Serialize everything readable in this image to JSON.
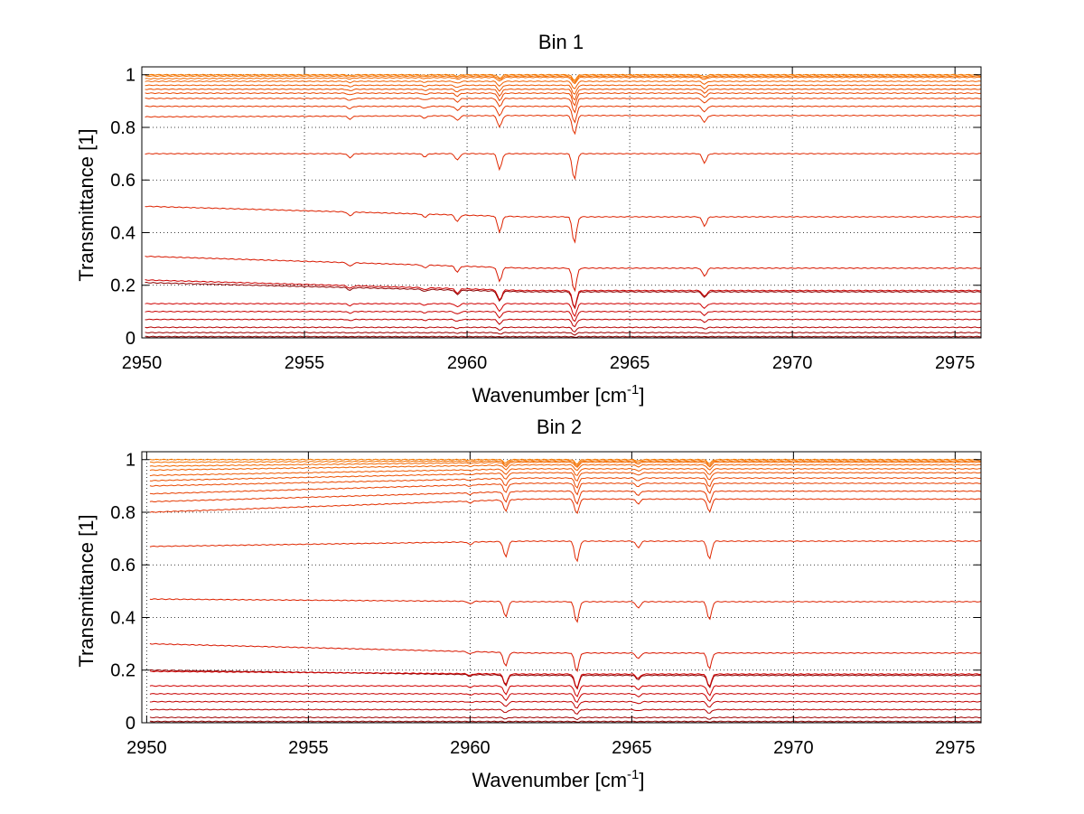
{
  "chart_data": [
    {
      "type": "line",
      "title": "Bin 1",
      "xlabel": "Wavenumber [cm",
      "xlabel_sup": "-1",
      "xlabel_end": "]",
      "ylabel": "Transmittance [1]",
      "xlim": [
        2950,
        2975.8
      ],
      "ylim": [
        0,
        1.03
      ],
      "xticks": [
        2950,
        2955,
        2960,
        2965,
        2970,
        2975
      ],
      "yticks": [
        0,
        0.2,
        0.4,
        0.6,
        0.8,
        1
      ],
      "ytick_labels": [
        "0",
        "0.2",
        "0.4",
        "0.6",
        "0.8",
        "1"
      ],
      "grid": true,
      "x_start": 2950.1,
      "dips": [
        {
          "x": 2961.0,
          "strength": 0.06
        },
        {
          "x": 2963.3,
          "strength": 0.1
        },
        {
          "x": 2967.3,
          "strength": 0.035
        },
        {
          "x": 2959.7,
          "strength": 0.025
        },
        {
          "x": 2956.4,
          "strength": 0.015
        },
        {
          "x": 2958.7,
          "strength": 0.012
        }
      ],
      "series_baselines": [
        {
          "start": 0.0,
          "end": 0.0,
          "color": "#7a0000"
        },
        {
          "start": 0.005,
          "end": 0.005,
          "color": "#8b0000"
        },
        {
          "start": 0.02,
          "end": 0.02,
          "color": "#a00000"
        },
        {
          "start": 0.04,
          "end": 0.04,
          "color": "#b50000"
        },
        {
          "start": 0.07,
          "end": 0.07,
          "color": "#c00000"
        },
        {
          "start": 0.1,
          "end": 0.1,
          "color": "#c80000"
        },
        {
          "start": 0.13,
          "end": 0.13,
          "color": "#d00000"
        },
        {
          "start": 0.21,
          "end": 0.175,
          "color": "#8b0000"
        },
        {
          "start": 0.22,
          "end": 0.18,
          "color": "#cc0000"
        },
        {
          "start": 0.31,
          "end": 0.265,
          "color": "#d81800"
        },
        {
          "start": 0.5,
          "end": 0.46,
          "color": "#dd2200"
        },
        {
          "start": 0.7,
          "end": 0.7,
          "color": "#e02800"
        },
        {
          "start": 0.84,
          "end": 0.845,
          "color": "#e33000"
        },
        {
          "start": 0.88,
          "end": 0.88,
          "color": "#e53800"
        },
        {
          "start": 0.91,
          "end": 0.91,
          "color": "#e84000"
        },
        {
          "start": 0.93,
          "end": 0.93,
          "color": "#ea4800"
        },
        {
          "start": 0.945,
          "end": 0.945,
          "color": "#ec5000"
        },
        {
          "start": 0.96,
          "end": 0.96,
          "color": "#ee5800"
        },
        {
          "start": 0.975,
          "end": 0.975,
          "color": "#f06000"
        },
        {
          "start": 0.985,
          "end": 0.99,
          "color": "#f26800"
        },
        {
          "start": 0.995,
          "end": 0.995,
          "color": "#f47000"
        },
        {
          "start": 1.0,
          "end": 1.0,
          "color": "#f67a00"
        }
      ]
    },
    {
      "type": "line",
      "title": "Bin 2",
      "xlabel": "Wavenumber [cm",
      "xlabel_sup": "-1",
      "xlabel_end": "]",
      "ylabel": "Transmittance [1]",
      "xlim": [
        2949.85,
        2975.8
      ],
      "ylim": [
        0,
        1.03
      ],
      "xticks": [
        2950,
        2955,
        2960,
        2965,
        2970,
        2975
      ],
      "yticks": [
        0,
        0.2,
        0.4,
        0.6,
        0.8,
        1
      ],
      "ytick_labels": [
        "0",
        "0.2",
        "0.4",
        "0.6",
        "0.8",
        "1"
      ],
      "grid": true,
      "x_start": 2950.1,
      "dips": [
        {
          "x": 2961.1,
          "strength": 0.06
        },
        {
          "x": 2963.3,
          "strength": 0.08
        },
        {
          "x": 2967.4,
          "strength": 0.07
        },
        {
          "x": 2965.2,
          "strength": 0.025
        },
        {
          "x": 2960.0,
          "strength": 0.01
        }
      ],
      "series_baselines": [
        {
          "start": 0.0,
          "end": 0.0,
          "color": "#7a0000"
        },
        {
          "start": 0.005,
          "end": 0.005,
          "color": "#8b0000"
        },
        {
          "start": 0.02,
          "end": 0.02,
          "color": "#a00000"
        },
        {
          "start": 0.05,
          "end": 0.05,
          "color": "#b50000"
        },
        {
          "start": 0.08,
          "end": 0.08,
          "color": "#c00000"
        },
        {
          "start": 0.11,
          "end": 0.11,
          "color": "#c80000"
        },
        {
          "start": 0.14,
          "end": 0.14,
          "color": "#d00000"
        },
        {
          "start": 0.2,
          "end": 0.18,
          "color": "#8b0000"
        },
        {
          "start": 0.195,
          "end": 0.185,
          "color": "#cc0000"
        },
        {
          "start": 0.3,
          "end": 0.265,
          "color": "#d81800"
        },
        {
          "start": 0.47,
          "end": 0.46,
          "color": "#dd2200"
        },
        {
          "start": 0.67,
          "end": 0.69,
          "color": "#e02800"
        },
        {
          "start": 0.8,
          "end": 0.85,
          "color": "#e33000"
        },
        {
          "start": 0.84,
          "end": 0.88,
          "color": "#e53800"
        },
        {
          "start": 0.87,
          "end": 0.91,
          "color": "#e84000"
        },
        {
          "start": 0.9,
          "end": 0.93,
          "color": "#ea4800"
        },
        {
          "start": 0.92,
          "end": 0.95,
          "color": "#ec5000"
        },
        {
          "start": 0.94,
          "end": 0.965,
          "color": "#ee5800"
        },
        {
          "start": 0.96,
          "end": 0.98,
          "color": "#f06000"
        },
        {
          "start": 0.975,
          "end": 0.99,
          "color": "#f26800"
        },
        {
          "start": 0.99,
          "end": 0.995,
          "color": "#f47000"
        },
        {
          "start": 1.0,
          "end": 1.0,
          "color": "#f67a00"
        }
      ]
    }
  ]
}
